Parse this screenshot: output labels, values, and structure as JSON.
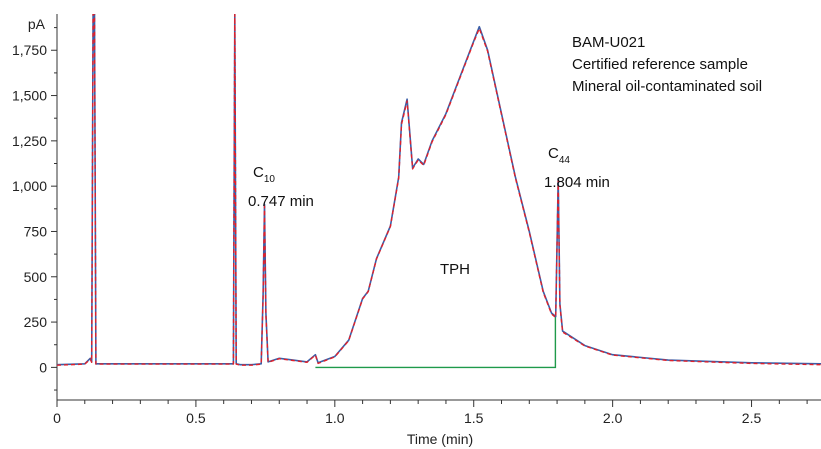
{
  "chart_data": {
    "type": "line",
    "ylabel": "pA",
    "xlabel": "Time (min)",
    "xlim": [
      0,
      2.75
    ],
    "ylim": [
      -180,
      1950
    ],
    "x_ticks": [
      0,
      0.5,
      1.0,
      1.5,
      2.0,
      2.5
    ],
    "x_tick_labels": [
      "0",
      "0.5",
      "1.0",
      "1.5",
      "2.0",
      "2.5"
    ],
    "y_ticks": [
      0,
      250,
      500,
      750,
      1000,
      1250,
      1500,
      1750
    ],
    "y_tick_labels": [
      "0",
      "250",
      "500",
      "750",
      "1,000",
      "1,250",
      "1,500",
      "1,750"
    ],
    "grid": false,
    "annotations": {
      "sample_lines": [
        "BAM-U021",
        "Certified reference sample",
        "Mineral oil-contaminated soil"
      ],
      "c10": {
        "symbol": "C",
        "subscript": "10",
        "time": "0.747 min",
        "x": 0.747,
        "y": 900
      },
      "c44": {
        "symbol": "C",
        "subscript": "44",
        "time": "1.804 min",
        "x": 1.804,
        "y": 1040
      },
      "tph": {
        "label": "TPH"
      }
    },
    "colors": {
      "trace_1": "#3b5fa8",
      "trace_2": "#e0202a",
      "baseline": "#1f9a4a"
    },
    "series": [
      {
        "style": "solid-blue",
        "x": [
          0,
          0.1,
          0.12,
          0.125,
          0.13,
          0.135,
          0.14,
          0.5,
          0.635,
          0.64,
          0.645,
          0.66,
          0.7,
          0.735,
          0.742,
          0.747,
          0.752,
          0.76,
          0.8,
          0.85,
          0.9,
          0.93,
          0.94,
          1.0,
          1.05,
          1.1,
          1.12,
          1.15,
          1.2,
          1.23,
          1.24,
          1.26,
          1.28,
          1.3,
          1.32,
          1.35,
          1.4,
          1.45,
          1.5,
          1.52,
          1.55,
          1.6,
          1.65,
          1.7,
          1.75,
          1.78,
          1.795,
          1.8,
          1.804,
          1.81,
          1.82,
          1.9,
          2.0,
          2.2,
          2.5,
          2.75
        ],
        "y": [
          15,
          20,
          50,
          30,
          1950,
          1950,
          20,
          20,
          20,
          1950,
          20,
          15,
          15,
          20,
          400,
          900,
          300,
          30,
          50,
          40,
          30,
          70,
          25,
          60,
          150,
          380,
          420,
          600,
          780,
          1050,
          1350,
          1480,
          1100,
          1150,
          1120,
          1250,
          1400,
          1600,
          1800,
          1880,
          1750,
          1400,
          1050,
          750,
          420,
          300,
          280,
          700,
          1040,
          350,
          200,
          120,
          70,
          40,
          25,
          20
        ]
      },
      {
        "style": "dashed-red",
        "x": [
          0,
          0.1,
          0.12,
          0.125,
          0.13,
          0.135,
          0.14,
          0.5,
          0.635,
          0.64,
          0.645,
          0.66,
          0.7,
          0.735,
          0.742,
          0.747,
          0.752,
          0.76,
          0.8,
          0.85,
          0.9,
          0.93,
          0.94,
          1.0,
          1.05,
          1.1,
          1.12,
          1.15,
          1.2,
          1.23,
          1.24,
          1.26,
          1.28,
          1.3,
          1.32,
          1.35,
          1.4,
          1.45,
          1.5,
          1.52,
          1.55,
          1.6,
          1.65,
          1.7,
          1.75,
          1.78,
          1.795,
          1.8,
          1.804,
          1.81,
          1.82,
          1.9,
          2.0,
          2.2,
          2.5,
          2.75
        ],
        "y": [
          12,
          18,
          45,
          28,
          1950,
          1950,
          18,
          18,
          18,
          1950,
          18,
          12,
          12,
          18,
          390,
          890,
          290,
          28,
          48,
          38,
          28,
          68,
          22,
          58,
          148,
          378,
          418,
          598,
          778,
          1045,
          1340,
          1470,
          1095,
          1145,
          1115,
          1245,
          1395,
          1595,
          1795,
          1870,
          1745,
          1395,
          1045,
          745,
          415,
          295,
          275,
          695,
          1030,
          345,
          195,
          118,
          68,
          38,
          22,
          15
        ]
      }
    ],
    "baseline": {
      "x": [
        0.93,
        1.794,
        1.794
      ],
      "y": [
        0,
        0,
        290
      ]
    }
  }
}
